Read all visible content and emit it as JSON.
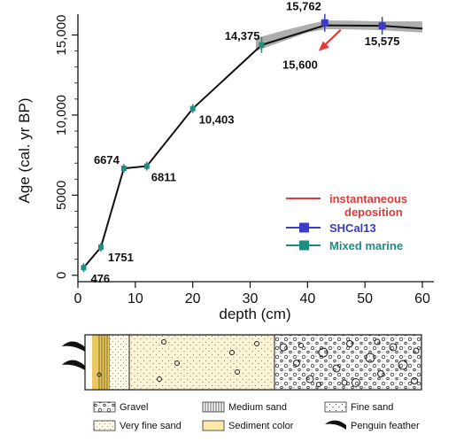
{
  "chart_data": {
    "type": "line",
    "xlabel": "depth (cm)",
    "ylabel": "Age (cal. yr BP)",
    "xlim": [
      0,
      62
    ],
    "ylim": [
      -400,
      16300
    ],
    "x_ticks": [
      0,
      10,
      20,
      30,
      40,
      50,
      60
    ],
    "x_tick_labels": [
      "0",
      "10",
      "20",
      "30",
      "40",
      "50",
      "60"
    ],
    "y_ticks": [
      0,
      5000,
      10000,
      15000
    ],
    "y_tick_labels": [
      "0",
      "5000",
      "10,000",
      "15,000"
    ],
    "age_model": {
      "x": [
        1,
        4,
        8,
        12,
        20,
        32,
        43,
        53,
        60
      ],
      "y": [
        476,
        1751,
        6674,
        6811,
        10403,
        14375,
        15600,
        15575,
        15400
      ]
    },
    "uncertainty_envelope": {
      "x": [
        31,
        36,
        40,
        43,
        47,
        53,
        60
      ],
      "upper": [
        14800,
        15300,
        15650,
        15900,
        15900,
        15850,
        15850
      ],
      "lower": [
        14000,
        14650,
        15150,
        15350,
        15350,
        15300,
        15150
      ]
    },
    "dates": [
      {
        "x": 1,
        "y": 476,
        "label": "476",
        "series": "Mixed marine"
      },
      {
        "x": 4,
        "y": 1751,
        "label": "1751",
        "series": "Mixed marine"
      },
      {
        "x": 8,
        "y": 6674,
        "label": "6674",
        "series": "Mixed marine"
      },
      {
        "x": 12,
        "y": 6811,
        "label": "6811",
        "series": "Mixed marine"
      },
      {
        "x": 20,
        "y": 10403,
        "label": "10,403",
        "series": "Mixed marine"
      },
      {
        "x": 32,
        "y": 14375,
        "label": "14,375",
        "series": "Mixed marine"
      },
      {
        "x": 43,
        "y": 15762,
        "label": "15,762",
        "series": "SHCal13"
      },
      {
        "x": 53,
        "y": 15575,
        "label": "15,575",
        "series": "SHCal13"
      }
    ],
    "annotation": {
      "label": "15,600",
      "x": 43,
      "y": 15600,
      "color": "#e03a3a"
    },
    "legend": {
      "placement": "right",
      "items": [
        {
          "label": "instantaneous deposition",
          "line1": "instantaneous",
          "line2": "deposition",
          "color": "#e03a3a",
          "kind": "line"
        },
        {
          "label": "SHCal13",
          "color": "#3b3bc4",
          "kind": "line-square"
        },
        {
          "label": "Mixed marine",
          "color": "#1f8c82",
          "kind": "line-square"
        }
      ]
    }
  },
  "core_legend": {
    "items": [
      {
        "key": "gravel",
        "label": "Gravel"
      },
      {
        "key": "medium-sand",
        "label": "Medium sand"
      },
      {
        "key": "fine-sand",
        "label": "Fine sand"
      },
      {
        "key": "very-fine-sand",
        "label": "Very fine sand"
      },
      {
        "key": "sediment-color",
        "label": "Sediment color"
      },
      {
        "key": "penguin-feather",
        "label": "Penguin feather"
      }
    ]
  },
  "colors": {
    "line": "#111111",
    "envelope": "#9a9a9a",
    "shcal": "#3b3bc4",
    "marine": "#1f8c82",
    "instantaneous": "#e03a3a",
    "sediment": "#fbe7a6",
    "medium_sand": "#e8c860"
  }
}
